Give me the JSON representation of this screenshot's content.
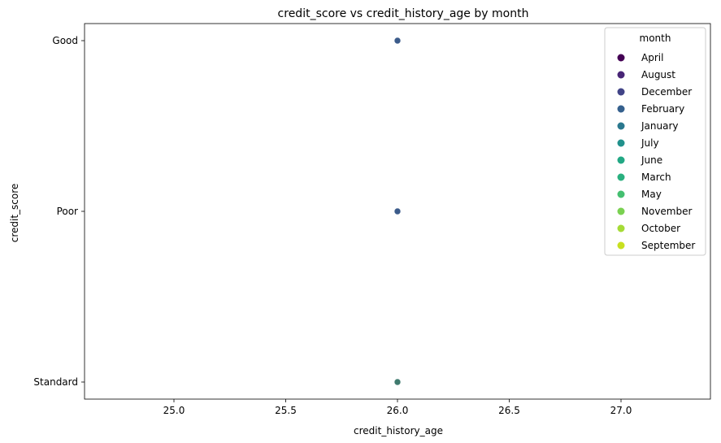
{
  "chart_data": {
    "type": "scatter",
    "title": "credit_score vs credit_history_age by month",
    "xlabel": "credit_history_age",
    "ylabel": "credit_score",
    "xlim": [
      24.6,
      27.4
    ],
    "x_ticks": [
      25.0,
      25.5,
      26.0,
      26.5,
      27.0
    ],
    "x_tick_labels": [
      "25.0",
      "25.5",
      "26.0",
      "26.5",
      "27.0"
    ],
    "y_categories": [
      "Good",
      "Poor",
      "Standard"
    ],
    "grid": false,
    "legend": {
      "title": "month",
      "placement": "top-right",
      "entries": [
        {
          "label": "April",
          "color": "#440154"
        },
        {
          "label": "August",
          "color": "#482576"
        },
        {
          "label": "December",
          "color": "#414487"
        },
        {
          "label": "February",
          "color": "#35608d"
        },
        {
          "label": "January",
          "color": "#2a788e"
        },
        {
          "label": "July",
          "color": "#21918c"
        },
        {
          "label": "June",
          "color": "#22a884"
        },
        {
          "label": "March",
          "color": "#2ab07f"
        },
        {
          "label": "May",
          "color": "#44bf70"
        },
        {
          "label": "November",
          "color": "#7ad151"
        },
        {
          "label": "October",
          "color": "#a5db36"
        },
        {
          "label": "September",
          "color": "#c8e020"
        }
      ]
    },
    "points": [
      {
        "x": 26.0,
        "y": "Good",
        "color": "#3b5b8a"
      },
      {
        "x": 26.0,
        "y": "Poor",
        "color": "#3b5b8a"
      },
      {
        "x": 26.0,
        "y": "Standard",
        "color": "#3f7a6e"
      }
    ]
  }
}
